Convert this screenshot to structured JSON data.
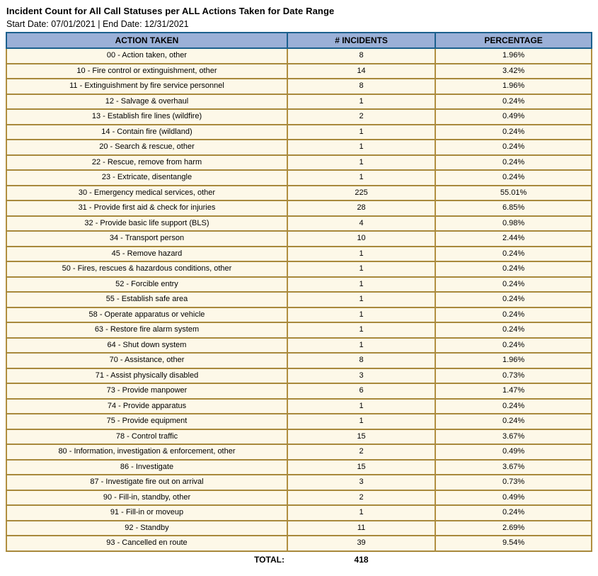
{
  "page": {
    "title": "Incident Count for All Call Statuses per ALL Actions Taken for Date Range",
    "date_range_text": "Start Date: 07/01/2021 | End Date: 12/31/2021"
  },
  "colors": {
    "header_background": "#9bb0d7",
    "header_border": "#1c608e",
    "row_background": "#fdf8e8",
    "row_border": "#b18f40",
    "text": "#000000"
  },
  "table": {
    "columns": [
      "ACTION TAKEN",
      "# INCIDENTS",
      "PERCENTAGE"
    ],
    "rows": [
      {
        "action": "00 - Action taken, other",
        "incidents": "8",
        "percentage": "1.96%"
      },
      {
        "action": "10 - Fire control or extinguishment, other",
        "incidents": "14",
        "percentage": "3.42%"
      },
      {
        "action": "11 - Extinguishment by fire service personnel",
        "incidents": "8",
        "percentage": "1.96%"
      },
      {
        "action": "12 - Salvage & overhaul",
        "incidents": "1",
        "percentage": "0.24%"
      },
      {
        "action": "13 - Establish fire lines (wildfire)",
        "incidents": "2",
        "percentage": "0.49%"
      },
      {
        "action": "14 - Contain fire (wildland)",
        "incidents": "1",
        "percentage": "0.24%"
      },
      {
        "action": "20 - Search & rescue, other",
        "incidents": "1",
        "percentage": "0.24%"
      },
      {
        "action": "22 - Rescue, remove from harm",
        "incidents": "1",
        "percentage": "0.24%"
      },
      {
        "action": "23 - Extricate, disentangle",
        "incidents": "1",
        "percentage": "0.24%"
      },
      {
        "action": "30 - Emergency medical services, other",
        "incidents": "225",
        "percentage": "55.01%"
      },
      {
        "action": "31 - Provide first aid & check for injuries",
        "incidents": "28",
        "percentage": "6.85%"
      },
      {
        "action": "32 - Provide basic life support (BLS)",
        "incidents": "4",
        "percentage": "0.98%"
      },
      {
        "action": "34 - Transport person",
        "incidents": "10",
        "percentage": "2.44%"
      },
      {
        "action": "45 - Remove hazard",
        "incidents": "1",
        "percentage": "0.24%"
      },
      {
        "action": "50 - Fires, rescues & hazardous conditions, other",
        "incidents": "1",
        "percentage": "0.24%"
      },
      {
        "action": "52 - Forcible entry",
        "incidents": "1",
        "percentage": "0.24%"
      },
      {
        "action": "55 - Establish safe area",
        "incidents": "1",
        "percentage": "0.24%"
      },
      {
        "action": "58 - Operate apparatus or vehicle",
        "incidents": "1",
        "percentage": "0.24%"
      },
      {
        "action": "63 - Restore fire alarm system",
        "incidents": "1",
        "percentage": "0.24%"
      },
      {
        "action": "64 - Shut down system",
        "incidents": "1",
        "percentage": "0.24%"
      },
      {
        "action": "70 - Assistance, other",
        "incidents": "8",
        "percentage": "1.96%"
      },
      {
        "action": "71 - Assist physically disabled",
        "incidents": "3",
        "percentage": "0.73%"
      },
      {
        "action": "73 - Provide manpower",
        "incidents": "6",
        "percentage": "1.47%"
      },
      {
        "action": "74 - Provide apparatus",
        "incidents": "1",
        "percentage": "0.24%"
      },
      {
        "action": "75 - Provide equipment",
        "incidents": "1",
        "percentage": "0.24%"
      },
      {
        "action": "78 - Control traffic",
        "incidents": "15",
        "percentage": "3.67%"
      },
      {
        "action": "80 - Information, investigation & enforcement, other",
        "incidents": "2",
        "percentage": "0.49%"
      },
      {
        "action": "86 - Investigate",
        "incidents": "15",
        "percentage": "3.67%"
      },
      {
        "action": "87 - Investigate fire out on arrival",
        "incidents": "3",
        "percentage": "0.73%"
      },
      {
        "action": "90 - Fill-in, standby, other",
        "incidents": "2",
        "percentage": "0.49%"
      },
      {
        "action": "91 - Fill-in or moveup",
        "incidents": "1",
        "percentage": "0.24%"
      },
      {
        "action": "92 - Standby",
        "incidents": "11",
        "percentage": "2.69%"
      },
      {
        "action": "93 - Cancelled en route",
        "incidents": "39",
        "percentage": "9.54%"
      }
    ],
    "total_label": "TOTAL:",
    "total_value": "418"
  }
}
